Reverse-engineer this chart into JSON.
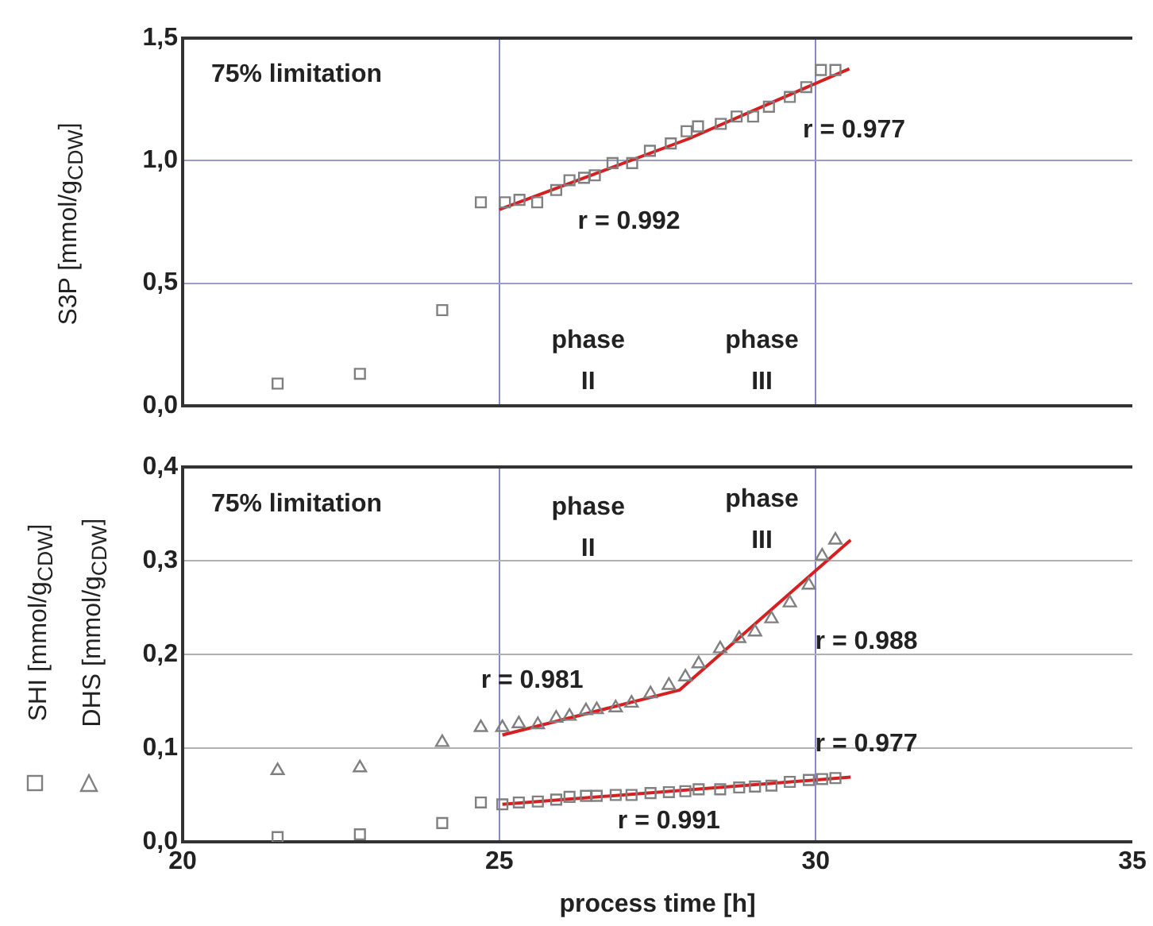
{
  "chart_data": [
    {
      "type": "scatter",
      "ylabel": "S3P [mmol/g$_{CDW}$]",
      "xlim": [
        20,
        35
      ],
      "xticks": [
        20,
        25,
        30,
        35
      ],
      "ylim": [
        0,
        1.5
      ],
      "yticks": [
        {
          "value": 0,
          "label": "0,0"
        },
        {
          "value": 0.5,
          "label": "0,5"
        },
        {
          "value": 1,
          "label": "1,0"
        },
        {
          "value": 1.5,
          "label": "1,5"
        }
      ],
      "tick_labels": "y",
      "grid": true,
      "annotations": [
        "75% limitation",
        "phase\nII",
        "phase\nIII",
        "r = 0.992",
        "r = 0.977"
      ],
      "series": [
        {
          "type": "scatter",
          "marker": "square",
          "color": "#808080",
          "x": [
            21.5,
            22.8,
            24.1,
            24.71,
            25.09,
            25.32,
            25.6,
            25.9,
            26.11,
            26.34,
            26.51,
            26.79,
            27.1,
            27.38,
            27.71,
            27.96,
            28.14,
            28.5,
            28.75,
            29.01,
            29.26,
            29.59,
            29.85,
            30.08,
            30.31
          ],
          "values": [
            0.09,
            0.13,
            0.39,
            0.83,
            0.83,
            0.84,
            0.83,
            0.88,
            0.92,
            0.93,
            0.94,
            0.99,
            0.99,
            1.04,
            1.07,
            1.12,
            1.14,
            1.15,
            1.18,
            1.18,
            1.22,
            1.26,
            1.3,
            1.37,
            1.37
          ]
        },
        {
          "type": "line",
          "marker": "none",
          "color": "#d42020",
          "x": [
            25,
            28,
            30.53
          ],
          "values": [
            0.8,
            1.09,
            1.375
          ]
        }
      ]
    },
    {
      "type": "scatter",
      "xlabel": "process time [h]",
      "ylabel": "SHI [mmol/g$_{CDW}$]\nDHS [mmol/g$_{CDW}$]",
      "xlim": [
        20,
        35
      ],
      "xticks": [
        20,
        25,
        30,
        35
      ],
      "ylim": [
        0,
        0.4
      ],
      "yticks": [
        {
          "value": 0,
          "label": "0,0"
        },
        {
          "value": 0.1,
          "label": "0,1"
        },
        {
          "value": 0.2,
          "label": "0,2"
        },
        {
          "value": 0.3,
          "label": "0,3"
        },
        {
          "value": 0.4,
          "label": "0,4"
        }
      ],
      "grid": true,
      "annotations": [
        "75% limitation",
        "phase\nII",
        "phase\nIII",
        "r = 0.981",
        "r = 0.988",
        "r = 0.977",
        "r = 0.991"
      ],
      "series": [
        {
          "type": "scatter",
          "marker": "square",
          "color": "#808080",
          "x": [
            21.5,
            22.8,
            24.1,
            24.71,
            25.05,
            25.31,
            25.61,
            25.9,
            26.11,
            26.37,
            26.54,
            26.84,
            27.09,
            27.39,
            27.68,
            27.94,
            28.15,
            28.49,
            28.79,
            29.04,
            29.3,
            29.59,
            29.89,
            30.1,
            30.31
          ],
          "values": [
            0.005,
            0.008,
            0.02,
            0.042,
            0.04,
            0.042,
            0.043,
            0.045,
            0.048,
            0.049,
            0.049,
            0.05,
            0.05,
            0.052,
            0.053,
            0.054,
            0.056,
            0.056,
            0.058,
            0.059,
            0.06,
            0.064,
            0.066,
            0.067,
            0.068
          ]
        },
        {
          "type": "scatter",
          "marker": "triangle",
          "color": "#808080",
          "x": [
            21.5,
            22.8,
            24.1,
            24.71,
            25.05,
            25.31,
            25.61,
            25.9,
            26.11,
            26.37,
            26.54,
            26.84,
            27.09,
            27.39,
            27.68,
            27.94,
            28.15,
            28.49,
            28.79,
            29.04,
            29.3,
            29.59,
            29.89,
            30.1,
            30.31
          ],
          "values": [
            0.076,
            0.079,
            0.106,
            0.122,
            0.122,
            0.126,
            0.125,
            0.132,
            0.134,
            0.14,
            0.141,
            0.143,
            0.148,
            0.158,
            0.167,
            0.176,
            0.19,
            0.206,
            0.217,
            0.224,
            0.238,
            0.255,
            0.274,
            0.305,
            0.322
          ]
        },
        {
          "type": "line",
          "marker": "none",
          "color": "#d42020",
          "x": [
            25.05,
            27.85,
            30.55
          ],
          "values": [
            0.114,
            0.162,
            0.322
          ]
        },
        {
          "type": "line",
          "marker": "none",
          "color": "#d42020",
          "x": [
            25.05,
            30.55
          ],
          "values": [
            0.04,
            0.069
          ]
        }
      ]
    }
  ]
}
